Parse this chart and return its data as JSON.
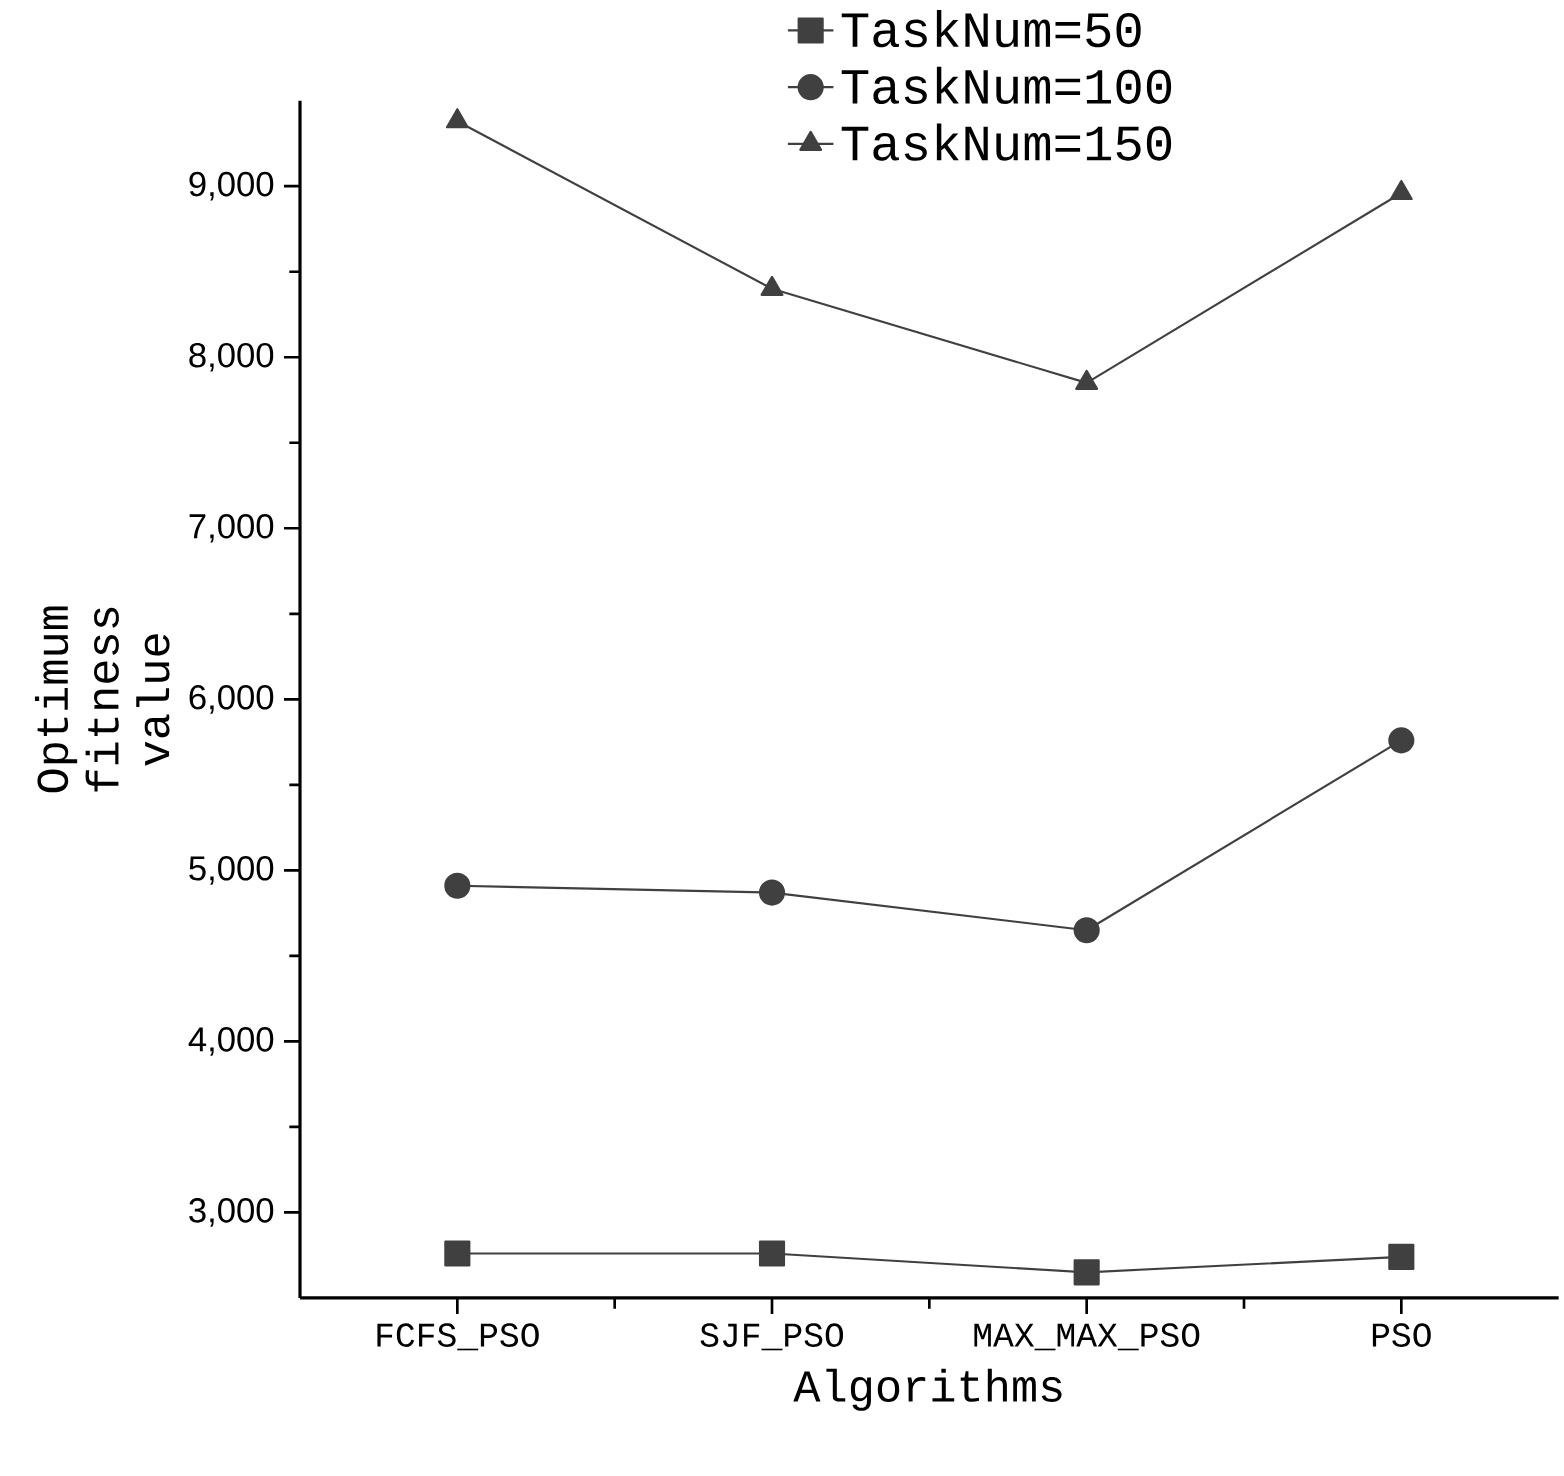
{
  "chart_data": {
    "type": "line",
    "xlabel": "Algorithms",
    "ylabel": "Optimum fitness value",
    "categories": [
      "FCFS_PSO",
      "SJF_PSO",
      "MAX_MAX_PSO",
      "PSO"
    ],
    "series": [
      {
        "name": "TaskNum=50",
        "color": "#404040",
        "marker": "square",
        "values": [
          2760,
          2760,
          2650,
          2740
        ]
      },
      {
        "name": "TaskNum=100",
        "color": "#404040",
        "marker": "circle",
        "values": [
          4910,
          4870,
          4650,
          5760
        ]
      },
      {
        "name": "TaskNum=150",
        "color": "#404040",
        "marker": "triangle",
        "values": [
          9380,
          8400,
          7850,
          8960
        ]
      }
    ],
    "ylim": [
      2500,
      9500
    ],
    "yticks": [
      {
        "value": 3000,
        "label": "3,000"
      },
      {
        "value": 4000,
        "label": "4,000"
      },
      {
        "value": 5000,
        "label": "5,000"
      },
      {
        "value": 6000,
        "label": "6,000"
      },
      {
        "value": 7000,
        "label": "7,000"
      },
      {
        "value": 8000,
        "label": "8,000"
      },
      {
        "value": 9000,
        "label": "9,000"
      }
    ],
    "grid": false,
    "legend": "top",
    "line_style": "solid"
  }
}
